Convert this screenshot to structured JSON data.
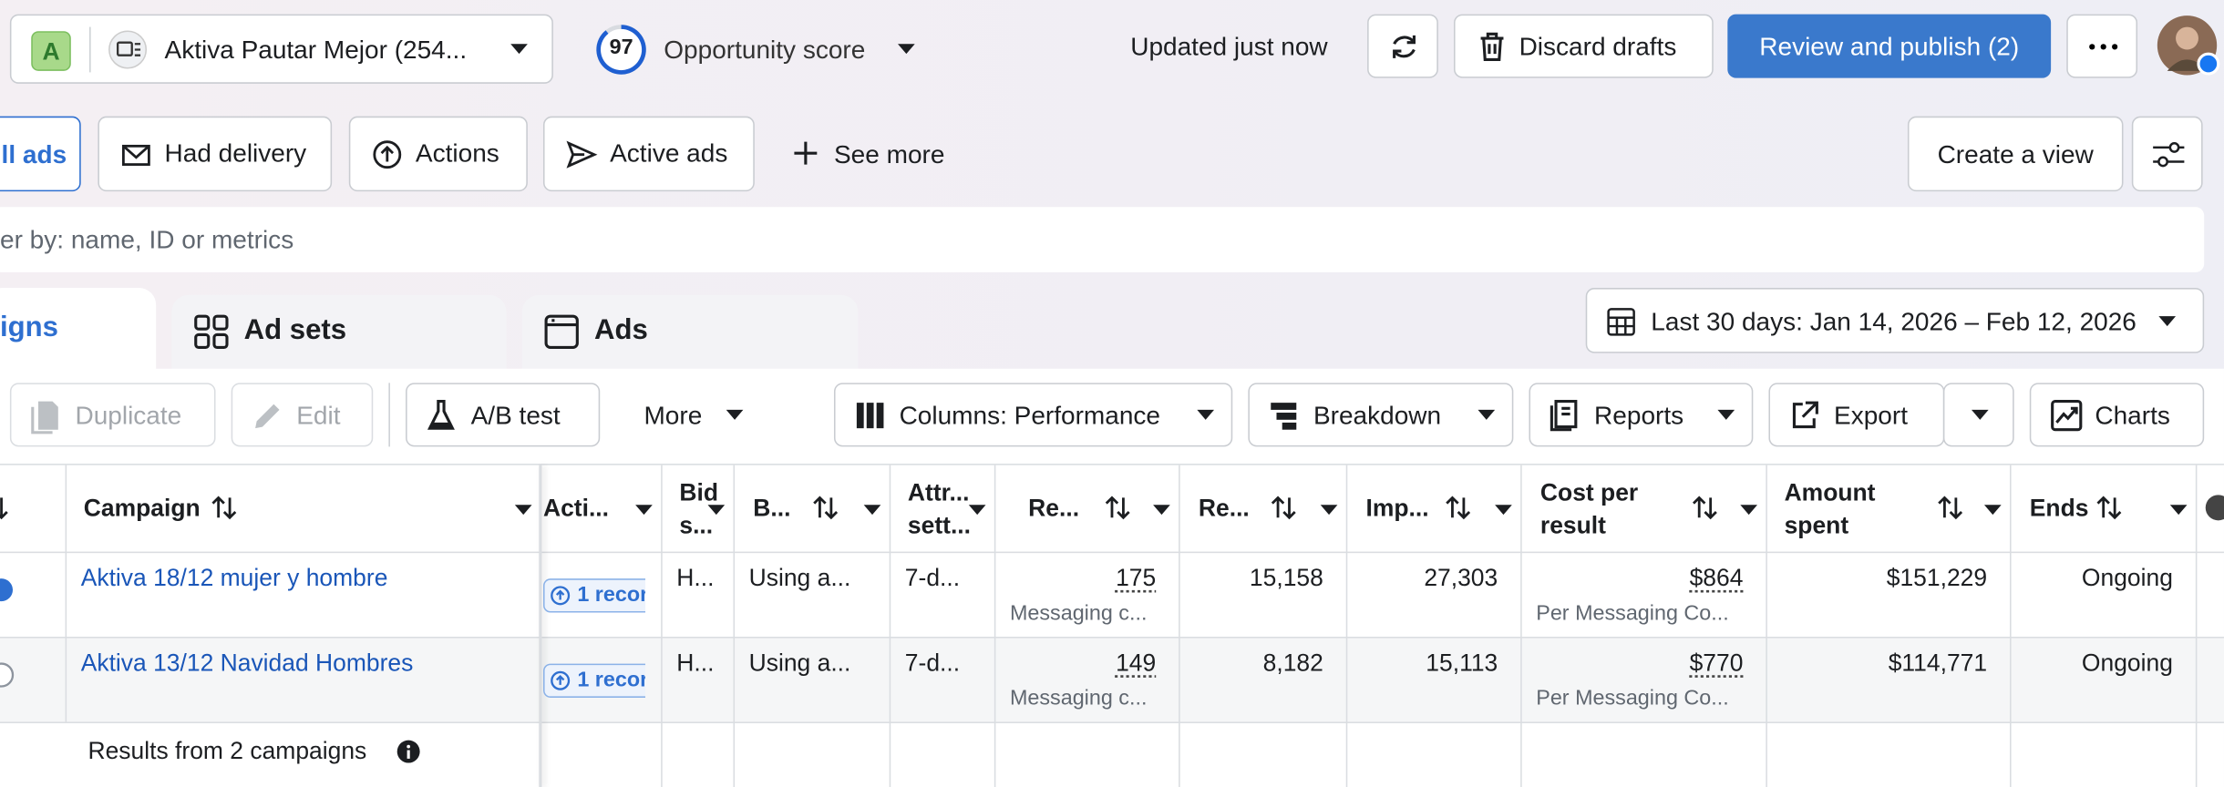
{
  "topbar": {
    "account_initial": "A",
    "account": "Aktiva Pautar Mejor (254...",
    "score": "97",
    "score_label": "Opportunity score",
    "status": "Updated just now",
    "discard": "Discard drafts",
    "publish": "Review and publish (2)"
  },
  "filters": {
    "tabs": [
      "ll ads",
      "Had delivery",
      "Actions",
      "Active ads",
      "See more"
    ],
    "create_view": "Create a view",
    "search_placeholder": "er by: name, ID or metrics"
  },
  "levels": {
    "tabs": [
      "igns",
      "Ad sets",
      "Ads"
    ],
    "date_range": "Last 30 days: Jan 14, 2026 – Feb 12, 2026"
  },
  "toolbar": {
    "buttons": [
      "Duplicate",
      "Edit",
      "A/B test",
      "More",
      "Columns: Performance",
      "Breakdown",
      "Reports",
      "Export",
      "Charts"
    ]
  },
  "table": {
    "headers": [
      "Campaign",
      "Acti...",
      "Bid s...",
      "B...",
      "Attr... sett...",
      "Re...",
      "Re...",
      "Imp...",
      "Cost per result",
      "Amount spent",
      "Ends"
    ],
    "rows": [
      {
        "campaign": "Aktiva 18/12 mujer y hombre",
        "action": "1 recor",
        "bid": "H...",
        "budget": "Using a...",
        "attribution": "7-d...",
        "results": "175",
        "results_type": "Messaging c...",
        "reach": "15,158",
        "impressions": "27,303",
        "cost": "$864",
        "cost_type": "Per Messaging Co...",
        "spent": "$151,229",
        "ends": "Ongoing"
      },
      {
        "campaign": "Aktiva 13/12 Navidad Hombres",
        "action": "1 recor",
        "bid": "H...",
        "budget": "Using a...",
        "attribution": "7-d...",
        "results": "149",
        "results_type": "Messaging c...",
        "reach": "8,182",
        "impressions": "15,113",
        "cost": "$770",
        "cost_type": "Per Messaging Co...",
        "spent": "$114,771",
        "ends": "Ongoing"
      }
    ],
    "footer": "Results from 2 campaigns"
  }
}
